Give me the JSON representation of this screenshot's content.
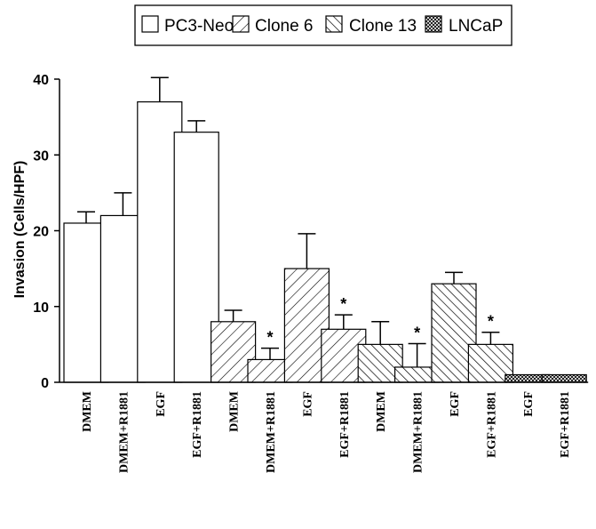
{
  "chart_data": {
    "type": "bar",
    "ylabel": "Invasion (Cells/HPF)",
    "ylim": [
      0,
      40
    ],
    "yticks": [
      "0",
      "10",
      "20",
      "30",
      "40"
    ],
    "legend_position": "top",
    "legend": [
      {
        "name": "PC3-Neo",
        "pattern": "none"
      },
      {
        "name": "Clone 6",
        "pattern": "diag-fwd-wide"
      },
      {
        "name": "Clone 13",
        "pattern": "diag-back"
      },
      {
        "name": "LNCaP",
        "pattern": "crosshatch"
      }
    ],
    "bars": [
      {
        "label": "DMEM",
        "group": 0,
        "value": 21,
        "error": 1.5,
        "star": ""
      },
      {
        "label": "DMEM+R1881",
        "group": 0,
        "value": 22,
        "error": 3,
        "star": ""
      },
      {
        "label": "EGF",
        "group": 0,
        "value": 37,
        "error": 3.2,
        "star": ""
      },
      {
        "label": "EGF+R1881",
        "group": 0,
        "value": 33,
        "error": 1.5,
        "star": ""
      },
      {
        "label": "DMEM",
        "group": 1,
        "value": 8,
        "error": 1.5,
        "star": ""
      },
      {
        "label": "DMEM+R1881",
        "group": 1,
        "value": 3,
        "error": 1.5,
        "star": "*"
      },
      {
        "label": "EGF",
        "group": 1,
        "value": 15,
        "error": 4.6,
        "star": ""
      },
      {
        "label": "EGF+R1881",
        "group": 1,
        "value": 7,
        "error": 1.9,
        "star": "*"
      },
      {
        "label": "DMEM",
        "group": 2,
        "value": 5,
        "error": 3,
        "star": ""
      },
      {
        "label": "DMEM+R1881",
        "group": 2,
        "value": 2,
        "error": 3.1,
        "star": "*"
      },
      {
        "label": "EGF",
        "group": 2,
        "value": 13,
        "error": 1.5,
        "star": ""
      },
      {
        "label": "EGF+R1881",
        "group": 2,
        "value": 5,
        "error": 1.6,
        "star": "*"
      },
      {
        "label": "EGF",
        "group": 3,
        "value": 1,
        "error": 0,
        "star": ""
      },
      {
        "label": "EGF+R1881",
        "group": 3,
        "value": 1,
        "error": 0,
        "star": ""
      }
    ]
  }
}
